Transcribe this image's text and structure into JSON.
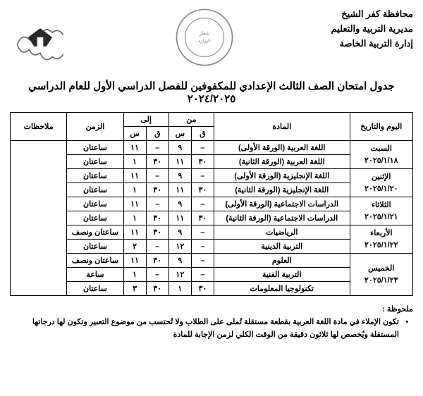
{
  "header": {
    "line1": "محافظة كفر الشيخ",
    "line2": "مديرية التربية والتعليم",
    "line3": "إدارة التربية الخاصة",
    "center_seal_top": "وزارة التربية والتعليم",
    "center_seal_bottom": "إدارة التربية الخاصة"
  },
  "title": "جدول امتحان الصف الثالث الإعدادي للمكفوفين للفصل الدراسي الأول للعام الدراسي ٢٠٢٤/٢٠٢٥",
  "columns": {
    "day": "اليوم والتاريخ",
    "subject": "المادة",
    "from": "من",
    "to": "إلى",
    "q": "ق",
    "s": "س",
    "time": "الزمن",
    "notes": "ملاحظات"
  },
  "rows": [
    {
      "day": "السبت",
      "date": "٢٠٢٥/١/١٨",
      "span": 2,
      "subject": "اللغة العربية (الورقة الأولى)",
      "fq": "–",
      "fs": "٩",
      "tq": "–",
      "ts": "١١",
      "time": "ساعتان"
    },
    {
      "subject": "اللغة العربية (الورقة الثانية)",
      "fq": "٣٠",
      "fs": "١١",
      "tq": "٣٠",
      "ts": "١",
      "time": "ساعتان"
    },
    {
      "day": "الإثنين",
      "date": "٢٠٢٥/١/٢٠",
      "span": 2,
      "subject": "اللغة الإنجليزية (الورقة الأولى)",
      "fq": "–",
      "fs": "٩",
      "tq": "–",
      "ts": "١١",
      "time": "ساعتان"
    },
    {
      "subject": "اللغة الإنجليزية (الورقة الثانية)",
      "fq": "٣٠",
      "fs": "١١",
      "tq": "٣٠",
      "ts": "١",
      "time": "ساعتان"
    },
    {
      "day": "الثلاثاء",
      "date": "٢٠٢٥/١/٢١",
      "span": 2,
      "subject": "الدراسات الاجتماعية (الورقة الأولى)",
      "fq": "–",
      "fs": "٩",
      "tq": "–",
      "ts": "١١",
      "time": "ساعتان"
    },
    {
      "subject": "الدراسات الاجتماعية (الورقة الثانية)",
      "fq": "٣٠",
      "fs": "١١",
      "tq": "٣٠",
      "ts": "١",
      "time": "ساعتان"
    },
    {
      "day": "الأربعاء",
      "date": "٢٠٢٥/١/٢٢",
      "span": 2,
      "subject": "الرياضيات",
      "fq": "–",
      "fs": "٩",
      "tq": "٣٠",
      "ts": "١١",
      "time": "ساعتان ونصف"
    },
    {
      "subject": "التربية الدينية",
      "fq": "–",
      "fs": "١٢",
      "tq": "–",
      "ts": "٢",
      "time": "ساعتان"
    },
    {
      "day": "الخميس",
      "date": "٢٠٢٥/١/٢٣",
      "span": 3,
      "subject": "العلوم",
      "fq": "–",
      "fs": "٩",
      "tq": "٣٠",
      "ts": "١١",
      "time": "ساعتان ونصف"
    },
    {
      "subject": "التربية الفنية",
      "fq": "–",
      "fs": "١٢",
      "tq": "–",
      "ts": "١",
      "time": "ساعة"
    },
    {
      "subject": "تكنولوجيا المعلومات",
      "fq": "٣٠",
      "fs": "١",
      "tq": "٣٠",
      "ts": "٣",
      "time": "ساعتان"
    }
  ],
  "notes_title": "ملحوظة :",
  "notes": [
    "تكون الإملاء في مادة اللغة العربية بقطعة مستقلة تُملى على الطلاب ولا تُحتسب من موضوع التعبير وتكون لها درجاتها المستقلة ويُخصص لها ثلاثون دقيقة من الوقت الكلي لزمن الإجابة للمادة"
  ],
  "colors": {
    "border": "#000000",
    "text": "#000000",
    "bg": "#ffffff",
    "seal_outer": "#777777",
    "seal_inner": "#999999"
  }
}
